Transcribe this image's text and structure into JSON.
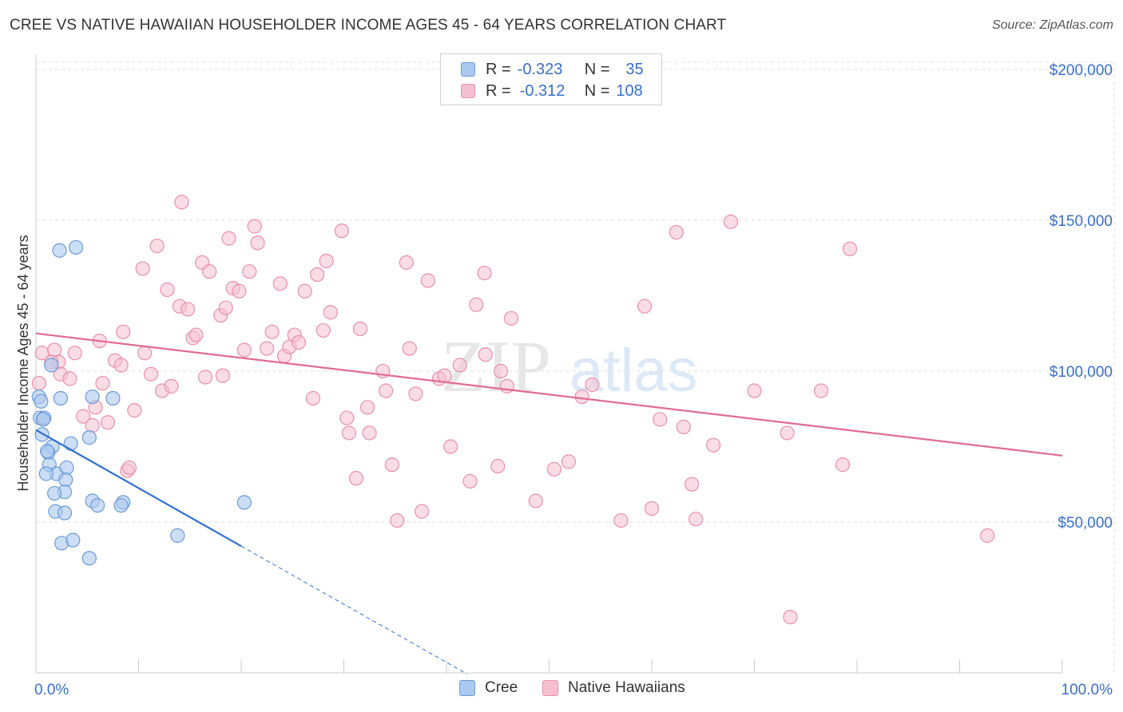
{
  "title": "CREE VS NATIVE HAWAIIAN HOUSEHOLDER INCOME AGES 45 - 64 YEARS CORRELATION CHART",
  "source": "Source: ZipAtlas.com",
  "watermark": {
    "zip": "ZIP",
    "atlas": "atlas"
  },
  "legend": {
    "rows": [
      {
        "r_label": "R =",
        "r_value": "-0.323",
        "n_label": "N =",
        "n_value": "35"
      },
      {
        "r_label": "R =",
        "r_value": "-0.312",
        "n_label": "N =",
        "n_value": "108"
      }
    ]
  },
  "bottom_legend": {
    "cree": "Cree",
    "native": "Native Hawaiians"
  },
  "colors": {
    "cree_fill": "#aac8f0",
    "cree_stroke": "#6b9ad8",
    "cree_line": "#2f6fd0",
    "native_fill": "#f6bfd0",
    "native_stroke": "#e890ac",
    "native_line": "#e06a95",
    "axis_label": "#3a6fc8",
    "grid": "#dddddd"
  },
  "chart_data": {
    "type": "scatter",
    "title": "CREE VS NATIVE HAWAIIAN HOUSEHOLDER INCOME AGES 45 - 64 YEARS CORRELATION CHART",
    "xlabel": "",
    "ylabel": "Householder Income Ages 45 - 64 years",
    "xlim": [
      0,
      100
    ],
    "ylim": [
      0,
      205000
    ],
    "x_tick_labels": [
      "0.0%",
      "100.0%"
    ],
    "y_ticks": [
      50000,
      100000,
      150000,
      200000
    ],
    "y_tick_labels": [
      "$50,000",
      "$100,000",
      "$150,000",
      "$200,000"
    ],
    "grid": true,
    "legend_position": "top-center",
    "series": [
      {
        "name": "Cree",
        "r": -0.323,
        "n": 35,
        "trend": {
          "x0": 0,
          "y0": 80500,
          "x1": 20,
          "y1": 42000,
          "dashed_to_x": 42
        },
        "points": [
          [
            0.3,
            91500
          ],
          [
            0.5,
            90000
          ],
          [
            0.4,
            84500
          ],
          [
            0.8,
            84500
          ],
          [
            0.6,
            79000
          ],
          [
            1.5,
            102000
          ],
          [
            1.6,
            75000
          ],
          [
            1.2,
            73000
          ],
          [
            2.4,
            91000
          ],
          [
            5.5,
            91500
          ],
          [
            7.5,
            91000
          ],
          [
            5.2,
            78000
          ],
          [
            3.4,
            76000
          ],
          [
            1.3,
            69000
          ],
          [
            2.0,
            66000
          ],
          [
            1.0,
            66000
          ],
          [
            3.0,
            68000
          ],
          [
            2.9,
            64000
          ],
          [
            2.8,
            60000
          ],
          [
            1.8,
            59500
          ],
          [
            1.9,
            53500
          ],
          [
            2.8,
            53000
          ],
          [
            5.5,
            57000
          ],
          [
            6.0,
            55500
          ],
          [
            8.5,
            56500
          ],
          [
            8.3,
            55500
          ],
          [
            20.3,
            56500
          ],
          [
            13.8,
            45500
          ],
          [
            2.5,
            43000
          ],
          [
            3.6,
            44000
          ],
          [
            5.2,
            38000
          ],
          [
            2.3,
            140000
          ],
          [
            3.9,
            141000
          ],
          [
            0.7,
            84000
          ],
          [
            1.1,
            73500
          ]
        ]
      },
      {
        "name": "Native Hawaiians",
        "r": -0.312,
        "n": 108,
        "trend": {
          "x0": 0,
          "y0": 112500,
          "x1": 100,
          "y1": 72000
        },
        "points": [
          [
            0.3,
            96000
          ],
          [
            0.6,
            106000
          ],
          [
            1.8,
            107000
          ],
          [
            2.2,
            103000
          ],
          [
            1.5,
            103000
          ],
          [
            2.4,
            99000
          ],
          [
            3.3,
            97500
          ],
          [
            3.8,
            106000
          ],
          [
            5.8,
            88000
          ],
          [
            4.6,
            85000
          ],
          [
            5.5,
            82000
          ],
          [
            6.2,
            110000
          ],
          [
            6.5,
            96000
          ],
          [
            7.0,
            83000
          ],
          [
            7.7,
            103500
          ],
          [
            8.3,
            102000
          ],
          [
            8.5,
            113000
          ],
          [
            8.9,
            67000
          ],
          [
            9.1,
            68000
          ],
          [
            9.6,
            87000
          ],
          [
            10.4,
            134000
          ],
          [
            10.6,
            106000
          ],
          [
            11.2,
            99000
          ],
          [
            11.8,
            141500
          ],
          [
            12.3,
            93500
          ],
          [
            12.8,
            127000
          ],
          [
            13.2,
            95000
          ],
          [
            14.0,
            121500
          ],
          [
            14.8,
            120500
          ],
          [
            14.2,
            156000
          ],
          [
            15.3,
            111000
          ],
          [
            15.6,
            112000
          ],
          [
            16.2,
            136000
          ],
          [
            16.5,
            98000
          ],
          [
            16.9,
            133000
          ],
          [
            18.0,
            118500
          ],
          [
            18.5,
            121000
          ],
          [
            18.8,
            144000
          ],
          [
            19.2,
            127500
          ],
          [
            19.8,
            126500
          ],
          [
            20.3,
            107000
          ],
          [
            20.8,
            133000
          ],
          [
            21.3,
            148000
          ],
          [
            21.6,
            142500
          ],
          [
            22.5,
            107500
          ],
          [
            23.0,
            113000
          ],
          [
            23.8,
            129000
          ],
          [
            24.2,
            105000
          ],
          [
            24.7,
            108000
          ],
          [
            25.2,
            112000
          ],
          [
            25.6,
            109500
          ],
          [
            26.2,
            126500
          ],
          [
            27.0,
            91000
          ],
          [
            27.4,
            132000
          ],
          [
            28.0,
            113500
          ],
          [
            28.3,
            136500
          ],
          [
            28.7,
            119500
          ],
          [
            29.8,
            146500
          ],
          [
            30.3,
            84500
          ],
          [
            30.5,
            79500
          ],
          [
            31.2,
            64500
          ],
          [
            31.6,
            114000
          ],
          [
            32.3,
            88000
          ],
          [
            32.5,
            79500
          ],
          [
            33.8,
            100000
          ],
          [
            34.1,
            93500
          ],
          [
            34.7,
            69000
          ],
          [
            35.2,
            50500
          ],
          [
            36.1,
            136000
          ],
          [
            36.4,
            107500
          ],
          [
            37.0,
            92500
          ],
          [
            37.6,
            53500
          ],
          [
            38.2,
            130000
          ],
          [
            39.3,
            97500
          ],
          [
            39.8,
            98500
          ],
          [
            40.4,
            75000
          ],
          [
            41.3,
            102000
          ],
          [
            42.3,
            63500
          ],
          [
            42.9,
            122000
          ],
          [
            43.7,
            132500
          ],
          [
            43.8,
            105500
          ],
          [
            45.0,
            68500
          ],
          [
            45.3,
            100000
          ],
          [
            45.9,
            95000
          ],
          [
            46.3,
            117500
          ],
          [
            48.7,
            57000
          ],
          [
            50.5,
            67500
          ],
          [
            51.9,
            70000
          ],
          [
            53.2,
            91500
          ],
          [
            54.2,
            95500
          ],
          [
            57.0,
            50500
          ],
          [
            59.3,
            121500
          ],
          [
            60.0,
            54500
          ],
          [
            60.8,
            84000
          ],
          [
            62.4,
            146000
          ],
          [
            63.1,
            81500
          ],
          [
            63.9,
            62500
          ],
          [
            64.3,
            51000
          ],
          [
            66.0,
            75500
          ],
          [
            67.7,
            149500
          ],
          [
            70.0,
            93500
          ],
          [
            73.2,
            79500
          ],
          [
            73.5,
            18500
          ],
          [
            76.5,
            93500
          ],
          [
            78.6,
            69000
          ],
          [
            79.3,
            140500
          ],
          [
            92.7,
            45500
          ],
          [
            18.2,
            98500
          ]
        ]
      }
    ]
  }
}
